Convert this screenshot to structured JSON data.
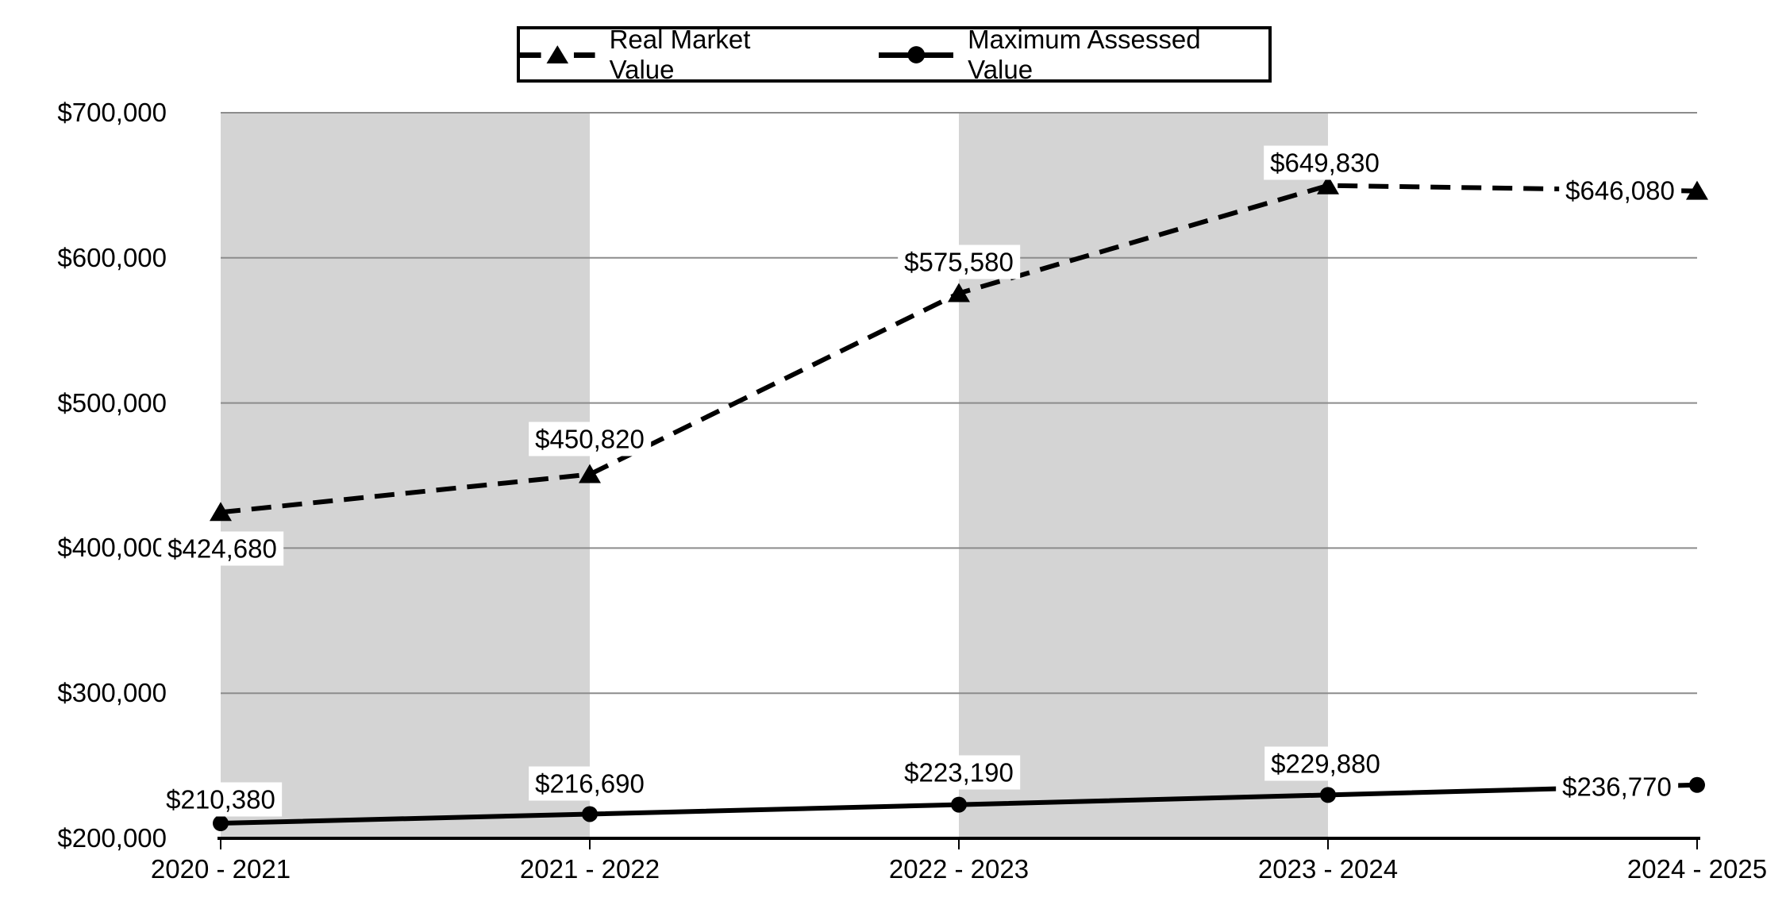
{
  "legend": {
    "items": [
      {
        "label": "Real Market Value"
      },
      {
        "label": "Maximum Assessed Value"
      }
    ]
  },
  "y_axis": {
    "tick_labels": [
      "$700,000",
      "$600,000",
      "$500,000",
      "$400,000",
      "$300,000",
      "$200,000"
    ]
  },
  "x_axis": {
    "tick_labels": [
      "2020 - 2021",
      "2021 - 2022",
      "2022 - 2023",
      "2023 - 2024",
      "2024 - 2025"
    ]
  },
  "chart_data": {
    "type": "line",
    "title": "",
    "categories": [
      "2020 - 2021",
      "2021 - 2022",
      "2022 - 2023",
      "2023 - 2024",
      "2024 - 2025"
    ],
    "series": [
      {
        "name": "Real Market Value",
        "line_style": "dashed",
        "marker": "triangle",
        "color": "#000000",
        "values": [
          424680,
          450820,
          575580,
          649830,
          646080
        ],
        "point_labels": [
          "$424,680",
          "$450,820",
          "$575,580",
          "$649,830",
          "$646,080"
        ]
      },
      {
        "name": "Maximum Assessed Value",
        "line_style": "solid",
        "marker": "circle",
        "color": "#000000",
        "values": [
          210380,
          216690,
          223190,
          229880,
          236770
        ],
        "point_labels": [
          "$210,380",
          "$216,690",
          "$223,190",
          "$229,880",
          "$236,770"
        ]
      }
    ],
    "ylim": [
      200000,
      700000
    ],
    "ytick_interval": 100000,
    "grid": true,
    "legend_position": "top-center",
    "background_bands": {
      "color": "#d4d4d4",
      "between_category_indices": [
        [
          0,
          1
        ],
        [
          2,
          3
        ]
      ]
    },
    "colors": {
      "gridline": "#8c8c8c",
      "axis": "#000000",
      "series": "#000000",
      "label_background": "#ffffff"
    }
  }
}
